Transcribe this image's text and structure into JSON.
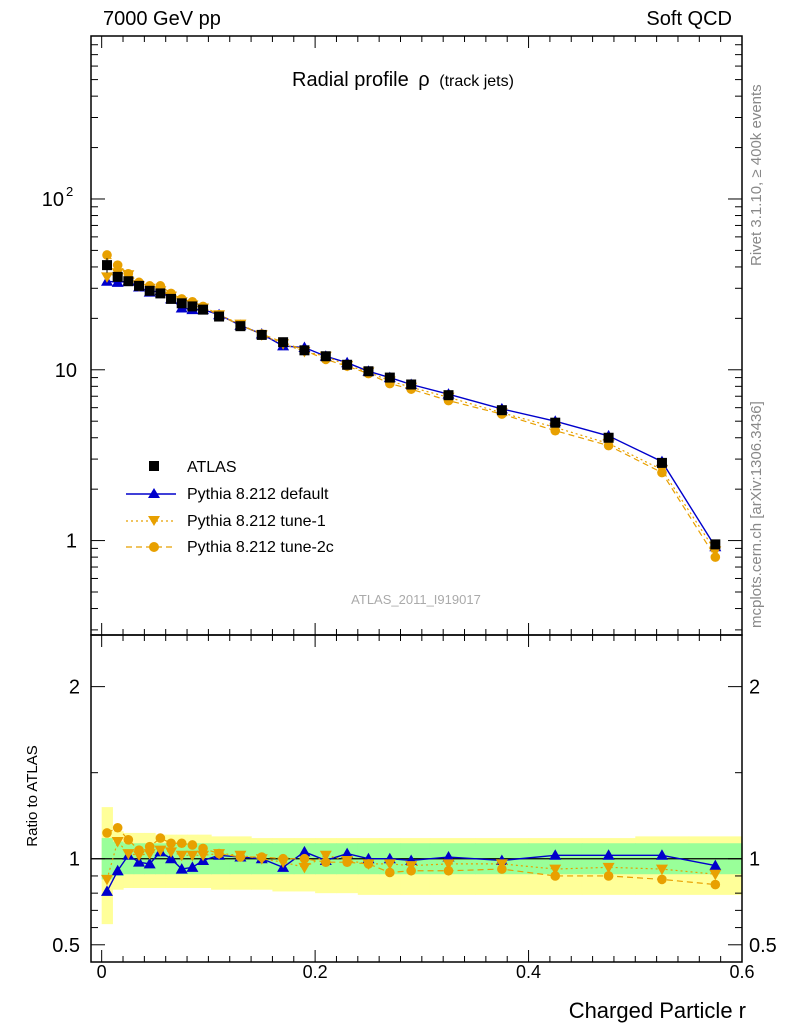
{
  "header": {
    "left": "7000 GeV pp",
    "right": "Soft QCD"
  },
  "side": {
    "rivet": "Rivet 3.1.10, ≥ 400k events",
    "mcplots": "mcplots.cern.ch [arXiv:1306.3436]"
  },
  "chart_data": {
    "type": "scatter",
    "title": "Radial profile",
    "title_symbol": "ρ",
    "title_suffix": "(track jets)",
    "watermark": "ATLAS_2011_I919017",
    "xlabel": "Charged Particle r",
    "ylabel_ratio": "Ratio to ATLAS",
    "xlim": [
      -0.01,
      0.6
    ],
    "ylim": [
      0.28,
      900
    ],
    "yscale": "log",
    "ratio_ylim": [
      0.4,
      2.3
    ],
    "main_y_tick_labels": [
      "1",
      "10",
      "10",
      "2"
    ],
    "ratio_y_tick_labels": [
      "0.5",
      "1",
      "2"
    ],
    "x_tick_labels": [
      "0",
      "0.2",
      "0.4",
      "0.6"
    ],
    "legend": {
      "position": "middle-left",
      "entries": [
        "ATLAS",
        "Pythia 8.212 default",
        "Pythia 8.212 tune-1",
        "Pythia 8.212 tune-2c"
      ]
    },
    "x": [
      0.005,
      0.015,
      0.025,
      0.035,
      0.045,
      0.055,
      0.065,
      0.075,
      0.085,
      0.095,
      0.11,
      0.13,
      0.15,
      0.17,
      0.19,
      0.21,
      0.23,
      0.25,
      0.27,
      0.29,
      0.325,
      0.375,
      0.425,
      0.475,
      0.525,
      0.575
    ],
    "series": [
      {
        "name": "ATLAS",
        "color": "#000000",
        "marker": "square",
        "values": [
          41,
          35,
          33,
          31,
          29,
          28,
          26,
          24.5,
          23.5,
          22.5,
          20.5,
          18,
          16,
          14.5,
          13,
          12,
          10.7,
          9.8,
          9.0,
          8.2,
          7.1,
          5.8,
          4.9,
          4.0,
          2.85,
          0.95
        ],
        "err_low": [
          4,
          2,
          1.5,
          1,
          1,
          1,
          1,
          0.8,
          0.8,
          0.8,
          0.6,
          0.5,
          0.5,
          0.4,
          0.4,
          0.4,
          0.3,
          0.3,
          0.3,
          0.3,
          0.2,
          0.2,
          0.15,
          0.15,
          0.1,
          0.05
        ],
        "err_high": [
          4,
          2,
          1.5,
          1,
          1,
          1,
          1,
          0.8,
          0.8,
          0.8,
          0.6,
          0.5,
          0.5,
          0.4,
          0.4,
          0.4,
          0.3,
          0.3,
          0.3,
          0.3,
          0.2,
          0.2,
          0.15,
          0.15,
          0.1,
          0.05
        ]
      },
      {
        "name": "Pythia 8.212 default",
        "color": "#0000cc",
        "marker": "triangle-up",
        "linestyle": "solid",
        "values": [
          33,
          32.5,
          33,
          30.5,
          28.5,
          29,
          26,
          23,
          22.5,
          22.5,
          21,
          18.2,
          16.2,
          13.8,
          13.5,
          12,
          11,
          9.8,
          9.0,
          8.2,
          7.2,
          5.9,
          5.0,
          4.1,
          2.9,
          0.92
        ],
        "ratio": [
          0.81,
          0.93,
          1.02,
          0.98,
          0.97,
          1.04,
          1.0,
          0.94,
          0.95,
          0.99,
          1.02,
          1.01,
          1.0,
          0.95,
          1.04,
          0.99,
          1.03,
          1.0,
          1.0,
          0.99,
          1.01,
          0.99,
          1.02,
          1.02,
          1.02,
          0.96
        ]
      },
      {
        "name": "Pythia 8.212 tune-1",
        "color": "#e8a000",
        "marker": "triangle-down",
        "linestyle": "dotted",
        "values": [
          35,
          37,
          36,
          31,
          30,
          29,
          27,
          25,
          24,
          23,
          21,
          18.5,
          16,
          14.2,
          12.8,
          12,
          10.6,
          9.7,
          8.6,
          7.9,
          6.9,
          5.6,
          4.6,
          3.7,
          2.6,
          0.87
        ],
        "ratio": [
          0.88,
          1.1,
          1.03,
          1.02,
          1.03,
          1.05,
          1.04,
          1.02,
          1.02,
          1.02,
          1.03,
          1.02,
          1.0,
          0.98,
          0.95,
          1.02,
          0.99,
          0.97,
          0.97,
          0.96,
          0.97,
          0.97,
          0.94,
          0.95,
          0.94,
          0.91
        ]
      },
      {
        "name": "Pythia 8.212 tune-2c",
        "color": "#e8a000",
        "marker": "circle",
        "linestyle": "dashed",
        "values": [
          47,
          41,
          36.5,
          32.5,
          31,
          31,
          28,
          26,
          25,
          23.5,
          21,
          18.2,
          16.2,
          14.5,
          13,
          11.5,
          10.5,
          9.5,
          8.3,
          7.7,
          6.6,
          5.5,
          4.4,
          3.6,
          2.5,
          0.8
        ],
        "ratio": [
          1.15,
          1.18,
          1.11,
          1.05,
          1.07,
          1.12,
          1.09,
          1.09,
          1.08,
          1.06,
          1.03,
          1.01,
          1.01,
          1.0,
          1.0,
          0.98,
          0.98,
          0.97,
          0.92,
          0.93,
          0.93,
          0.94,
          0.9,
          0.9,
          0.88,
          0.85
        ]
      }
    ],
    "ratio_band_inner": [
      [
        0.88,
        1.12
      ],
      [
        0.9,
        1.1
      ],
      [
        0.91,
        1.09
      ],
      [
        0.91,
        1.09
      ],
      [
        0.91,
        1.09
      ],
      [
        0.91,
        1.09
      ],
      [
        0.91,
        1.09
      ],
      [
        0.91,
        1.09
      ],
      [
        0.91,
        1.09
      ],
      [
        0.91,
        1.09
      ],
      [
        0.91,
        1.09
      ],
      [
        0.91,
        1.09
      ],
      [
        0.91,
        1.09
      ],
      [
        0.91,
        1.09
      ],
      [
        0.91,
        1.09
      ],
      [
        0.91,
        1.09
      ],
      [
        0.91,
        1.09
      ],
      [
        0.91,
        1.09
      ],
      [
        0.91,
        1.09
      ],
      [
        0.91,
        1.09
      ],
      [
        0.91,
        1.09
      ],
      [
        0.91,
        1.09
      ],
      [
        0.91,
        1.09
      ],
      [
        0.91,
        1.09
      ],
      [
        0.91,
        1.09
      ],
      [
        0.91,
        1.09
      ]
    ],
    "ratio_band_outer": [
      [
        0.62,
        1.3
      ],
      [
        0.82,
        1.16
      ],
      [
        0.83,
        1.15
      ],
      [
        0.83,
        1.15
      ],
      [
        0.83,
        1.15
      ],
      [
        0.83,
        1.14
      ],
      [
        0.83,
        1.14
      ],
      [
        0.83,
        1.14
      ],
      [
        0.83,
        1.14
      ],
      [
        0.83,
        1.14
      ],
      [
        0.82,
        1.13
      ],
      [
        0.82,
        1.13
      ],
      [
        0.82,
        1.12
      ],
      [
        0.81,
        1.12
      ],
      [
        0.81,
        1.12
      ],
      [
        0.8,
        1.12
      ],
      [
        0.8,
        1.12
      ],
      [
        0.79,
        1.12
      ],
      [
        0.79,
        1.12
      ],
      [
        0.79,
        1.12
      ],
      [
        0.79,
        1.12
      ],
      [
        0.79,
        1.12
      ],
      [
        0.79,
        1.12
      ],
      [
        0.79,
        1.12
      ],
      [
        0.79,
        1.13
      ],
      [
        0.79,
        1.13
      ]
    ]
  }
}
